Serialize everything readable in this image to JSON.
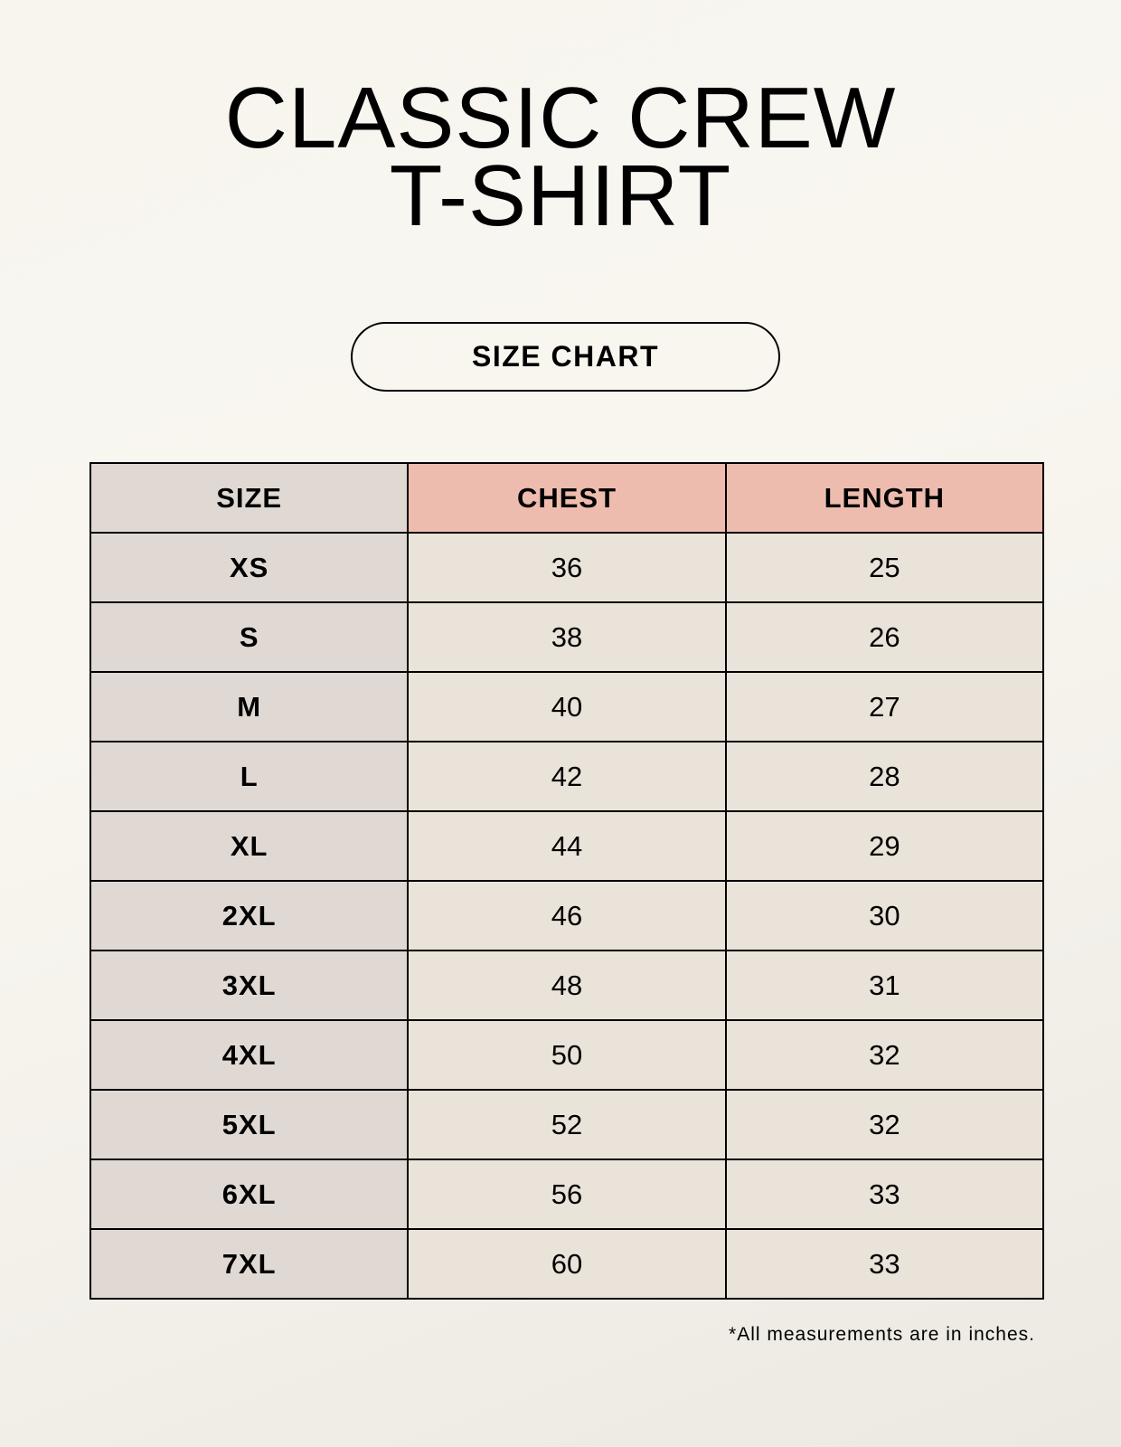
{
  "title_line1": "CLASSIC CREW",
  "title_line2": "T-SHIRT",
  "badge": "SIZE CHART",
  "table": {
    "headers": [
      "SIZE",
      "CHEST",
      "LENGTH"
    ],
    "rows": [
      [
        "XS",
        "36",
        "25"
      ],
      [
        "S",
        "38",
        "26"
      ],
      [
        "M",
        "40",
        "27"
      ],
      [
        "L",
        "42",
        "28"
      ],
      [
        "XL",
        "44",
        "29"
      ],
      [
        "2XL",
        "46",
        "30"
      ],
      [
        "3XL",
        "48",
        "31"
      ],
      [
        "4XL",
        "50",
        "32"
      ],
      [
        "5XL",
        "52",
        "32"
      ],
      [
        "6XL",
        "56",
        "33"
      ],
      [
        "7XL",
        "60",
        "33"
      ]
    ]
  },
  "footnote": "*All measurements are in inches.",
  "colors": {
    "size_column": "#e0d9d3",
    "measure_header": "#eebcae",
    "measure_cells": "#eae3d9"
  }
}
